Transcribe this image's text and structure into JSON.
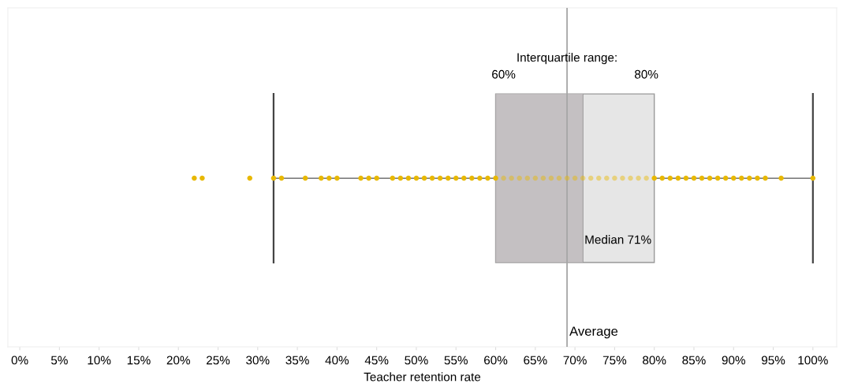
{
  "chart_data": {
    "type": "box",
    "orientation": "horizontal",
    "xlabel": "Teacher retention rate",
    "categories": [
      null
    ],
    "series": [
      {
        "type": "box",
        "boxes": [
          {
            "low": 32,
            "q1": 60,
            "median": 71,
            "q3": 80,
            "high": 100
          }
        ],
        "color": "#e2e2e2"
      },
      {
        "type": "scatter",
        "color": "#e8b800",
        "x": [
          null,
          null,
          null,
          null,
          null,
          null,
          null,
          null,
          null,
          null,
          null,
          null,
          null,
          null,
          null,
          null,
          null,
          null,
          null,
          null,
          null,
          null,
          null,
          null,
          null,
          null,
          null,
          null,
          null,
          null,
          null,
          null,
          null,
          null,
          null,
          null,
          null,
          null,
          null,
          null,
          null,
          null,
          null,
          null,
          null,
          null,
          null,
          null,
          null,
          null,
          null,
          null,
          null,
          null,
          null,
          null,
          null,
          null,
          null,
          null,
          null,
          null
        ],
        "values": [
          22,
          23,
          29,
          32,
          33,
          36,
          38,
          39,
          40,
          43,
          44,
          45,
          47,
          48,
          49,
          50,
          51,
          52,
          53,
          54,
          55,
          56,
          57,
          58,
          59,
          60,
          61,
          62,
          63,
          64,
          65,
          66,
          67,
          68,
          69,
          70,
          71,
          72,
          73,
          74,
          75,
          76,
          77,
          78,
          79,
          80,
          81,
          82,
          83,
          84,
          85,
          86,
          87,
          88,
          89,
          90,
          91,
          92,
          93,
          94,
          96,
          100
        ]
      }
    ],
    "xlim": [
      -1.5,
      103
    ],
    "xticks": [
      {
        "value": 0,
        "label": "0%"
      },
      {
        "value": 5,
        "label": "5%"
      },
      {
        "value": 10,
        "label": "10%"
      },
      {
        "value": 15,
        "label": "15%"
      },
      {
        "value": 20,
        "label": "20%"
      },
      {
        "value": 25,
        "label": "25%"
      },
      {
        "value": 30,
        "label": "30%"
      },
      {
        "value": 35,
        "label": "35%"
      },
      {
        "value": 40,
        "label": "40%"
      },
      {
        "value": 45,
        "label": "45%"
      },
      {
        "value": 50,
        "label": "50%"
      },
      {
        "value": 55,
        "label": "55%"
      },
      {
        "value": 60,
        "label": "60%"
      },
      {
        "value": 65,
        "label": "65%"
      },
      {
        "value": 70,
        "label": "70%"
      },
      {
        "value": 75,
        "label": "75%"
      },
      {
        "value": 80,
        "label": "80%"
      },
      {
        "value": 85,
        "label": "85%"
      },
      {
        "value": 90,
        "label": "90%"
      },
      {
        "value": 95,
        "label": "95%"
      },
      {
        "value": 100,
        "label": "100%"
      }
    ],
    "bands": [
      {
        "axis": "x",
        "from": 60,
        "to": 71,
        "color": "#bdb9bb"
      }
    ],
    "ref_lines": [
      {
        "axis": "x",
        "value": 69,
        "label": "Average",
        "color": "#a6a6a6"
      }
    ],
    "annotations": [
      "Interquartile range:",
      "60%",
      "80%",
      "Median 71%"
    ],
    "grid": false,
    "marker": "circle"
  }
}
